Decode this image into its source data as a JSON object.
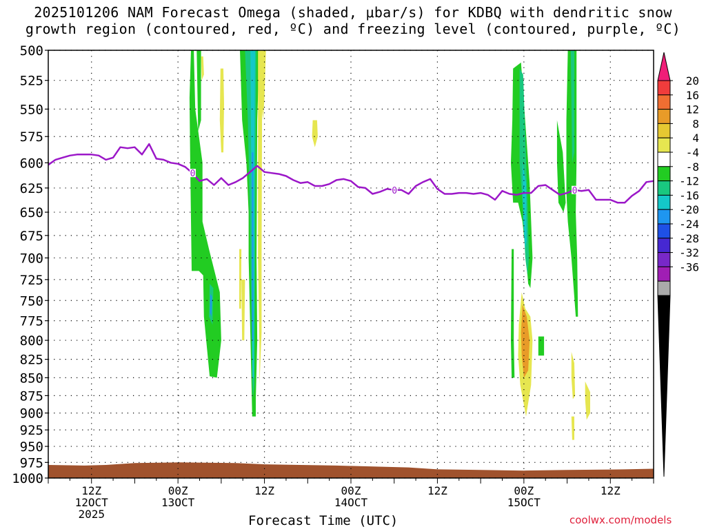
{
  "title": {
    "line1": "2025101206 NAM Forecast Omega (shaded, μbar/s) for KDBQ with dendritic snow",
    "line2": "growth region (contoured, red, ºC) and freezing level (contoured, purple, ºC)"
  },
  "credit": "coolwx.com/models",
  "chart_data": {
    "type": "heatmap",
    "title": "2025101206 NAM Forecast Omega (shaded, μbar/s) for KDBQ with dendritic snow growth region (contoured, red, ºC) and freezing level (contoured, purple, ºC)",
    "xlabel": "Forecast Time (UTC)",
    "ylabel": "",
    "x_range_hours": [
      0,
      84
    ],
    "y_range": [
      1000,
      500
    ],
    "y_scale": "log-pressure",
    "grid": true,
    "y_ticks": [
      "500",
      "525",
      "550",
      "575",
      "600",
      "625",
      "650",
      "675",
      "700",
      "725",
      "750",
      "775",
      "800",
      "825",
      "850",
      "875",
      "900",
      "925",
      "950",
      "975",
      "1000"
    ],
    "x_ticks": [
      {
        "hour": 6,
        "label": [
          "12Z",
          "12OCT",
          "2025"
        ]
      },
      {
        "hour": 18,
        "label": [
          "00Z",
          "13OCT"
        ]
      },
      {
        "hour": 30,
        "label": [
          "12Z"
        ]
      },
      {
        "hour": 42,
        "label": [
          "00Z",
          "14OCT"
        ]
      },
      {
        "hour": 54,
        "label": [
          "12Z"
        ]
      },
      {
        "hour": 66,
        "label": [
          "00Z",
          "15OCT"
        ]
      },
      {
        "hour": 78,
        "label": [
          "12Z"
        ]
      }
    ],
    "colorbar": {
      "labels": [
        "20",
        "16",
        "12",
        "8",
        "4",
        "-4",
        "-8",
        "-12",
        "-16",
        "-20",
        "-24",
        "-28",
        "-32",
        "-36"
      ],
      "colors": [
        "#f01e78",
        "#f03c3c",
        "#f06e32",
        "#e89b28",
        "#e6c832",
        "#e6e650",
        "#ffffff",
        "#22cc22",
        "#19c87f",
        "#14c8c8",
        "#1e96f0",
        "#1e50e6",
        "#4628d2",
        "#7828c8",
        "#a01eb4",
        "#aaaaaa",
        "#000000"
      ]
    },
    "series": [
      {
        "name": "freezing level (0 ºC, purple)",
        "contour_label": "0",
        "x": [
          0,
          1,
          2,
          3,
          4,
          5,
          6,
          7,
          8,
          9,
          10,
          11,
          12,
          13,
          14,
          15,
          16,
          17,
          18,
          19,
          20,
          21,
          22,
          23,
          24,
          25,
          26,
          27,
          28,
          29,
          30,
          31,
          32,
          33,
          34,
          35,
          36,
          37,
          38,
          39,
          40,
          41,
          42,
          43,
          44,
          45,
          46,
          47,
          48,
          49,
          50,
          51,
          52,
          53,
          54,
          55,
          56,
          57,
          58,
          59,
          60,
          61,
          62,
          63,
          64,
          65,
          66,
          67,
          68,
          69,
          70,
          71,
          72,
          73,
          74,
          75,
          76,
          77,
          78,
          79,
          80,
          81,
          82,
          83,
          84
        ],
        "y": [
          602,
          597,
          595,
          593,
          592,
          592,
          592,
          593,
          597,
          595,
          585,
          586,
          585,
          592,
          582,
          596,
          597,
          600,
          601,
          604,
          610,
          618,
          616,
          622,
          615,
          622,
          619,
          615,
          609,
          603,
          609,
          610,
          611,
          613,
          617,
          620,
          619,
          623,
          623,
          621,
          617,
          616,
          618,
          624,
          625,
          631,
          629,
          626,
          627,
          627,
          631,
          623,
          619,
          616,
          626,
          631,
          631,
          630,
          630,
          631,
          630,
          632,
          637,
          628,
          631,
          632,
          630,
          630,
          623,
          622,
          627,
          632,
          630,
          627,
          628,
          627,
          637,
          637,
          637,
          640,
          640,
          633,
          628,
          619,
          618
        ],
        "labels_at_x": [
          20,
          48,
          73
        ]
      }
    ],
    "omega_regions": [
      {
        "level": "-4 to -8",
        "color": "#22cc22",
        "x_range": [
          19.5,
          24.2
        ],
        "y_range": [
          500,
          850
        ]
      },
      {
        "level": "-4 to -8",
        "color": "#22cc22",
        "x_range": [
          26.5,
          29.3
        ],
        "y_range": [
          500,
          905
        ]
      },
      {
        "level": "-8 to -12",
        "color": "#19c87f",
        "x_range": [
          27.2,
          28.8
        ],
        "y_range": [
          500,
          890
        ]
      },
      {
        "level": "-12 to -16",
        "color": "#14c8c8",
        "x_range": [
          28.0,
          28.6
        ],
        "y_range": [
          500,
          850
        ]
      },
      {
        "level": "-16 to -20",
        "color": "#1e96f0",
        "x_range": [
          28.2,
          28.45
        ],
        "y_range": [
          590,
          800
        ]
      },
      {
        "level": "-4 to -8",
        "color": "#22cc22",
        "x_range": [
          64.3,
          67.2
        ],
        "y_range": [
          515,
          760
        ]
      },
      {
        "level": "-4 to -8",
        "color": "#22cc22",
        "x_range": [
          71.9,
          73.7
        ],
        "y_range": [
          500,
          770
        ]
      },
      {
        "level": "4 to 8",
        "color": "#e6e650",
        "x_range": [
          65.3,
          67.8
        ],
        "y_range": [
          740,
          905
        ]
      },
      {
        "level": "8 to 12",
        "color": "#e89b28",
        "x_range": [
          65.8,
          66.7
        ],
        "y_range": [
          755,
          850
        ]
      },
      {
        "level": "surface (terrain)",
        "color": "#a0522d",
        "x_range": [
          0,
          84
        ],
        "y_range": [
          975,
          1000
        ]
      }
    ]
  }
}
